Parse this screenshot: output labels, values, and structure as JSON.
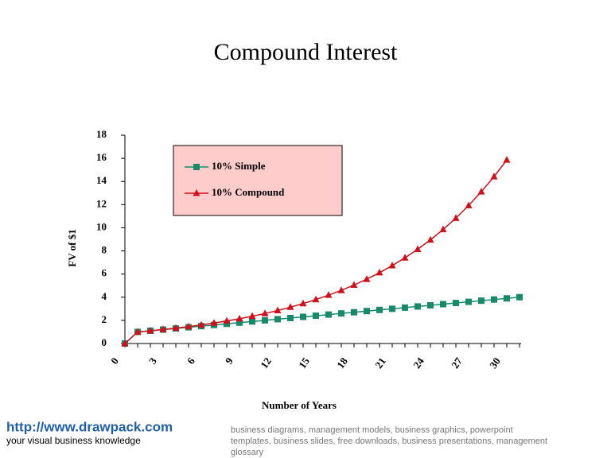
{
  "chart_data": {
    "type": "line",
    "title": "Compound Interest",
    "x_label": "Number of Years",
    "y_label": "FV of $1",
    "x": [
      0,
      1,
      2,
      3,
      4,
      5,
      6,
      7,
      8,
      9,
      10,
      11,
      12,
      13,
      14,
      15,
      16,
      17,
      18,
      19,
      20,
      21,
      22,
      23,
      24,
      25,
      26,
      27,
      28,
      29,
      30,
      31
    ],
    "series": [
      {
        "name": "10% Simple",
        "color": "#168b6b",
        "marker": "square",
        "values": [
          0,
          1.0,
          1.1,
          1.2,
          1.3,
          1.4,
          1.5,
          1.6,
          1.7,
          1.8,
          1.9,
          2.0,
          2.1,
          2.2,
          2.3,
          2.4,
          2.5,
          2.6,
          2.7,
          2.8,
          2.9,
          3.0,
          3.1,
          3.2,
          3.3,
          3.4,
          3.5,
          3.6,
          3.7,
          3.8,
          3.9,
          4.0
        ]
      },
      {
        "name": "10% Compound",
        "color": "#d0101b",
        "marker": "triangle",
        "values": [
          0,
          1.0,
          1.1,
          1.21,
          1.33,
          1.46,
          1.61,
          1.77,
          1.95,
          2.14,
          2.36,
          2.59,
          2.85,
          3.14,
          3.45,
          3.8,
          4.18,
          4.59,
          5.05,
          5.56,
          6.12,
          6.73,
          7.4,
          8.14,
          8.95,
          9.85,
          10.83,
          11.92,
          13.11,
          14.42,
          15.86,
          null
        ]
      }
    ],
    "xlim": [
      0,
      31
    ],
    "xticks": [
      0,
      3,
      6,
      9,
      12,
      15,
      18,
      21,
      24,
      27,
      30
    ],
    "ylim": [
      0,
      18
    ],
    "yticks": [
      0,
      2,
      4,
      6,
      8,
      10,
      12,
      14,
      16,
      18
    ],
    "legend_position": "top-left",
    "legend_background": "#ffcccc"
  },
  "footer": {
    "url": "http://www.drawpack.com",
    "tagline": "your visual business knowledge",
    "keywords": [
      "business diagrams, management models, business graphics, powerpoint",
      "templates, business slides, free downloads, business presentations, management",
      "glossary"
    ]
  }
}
